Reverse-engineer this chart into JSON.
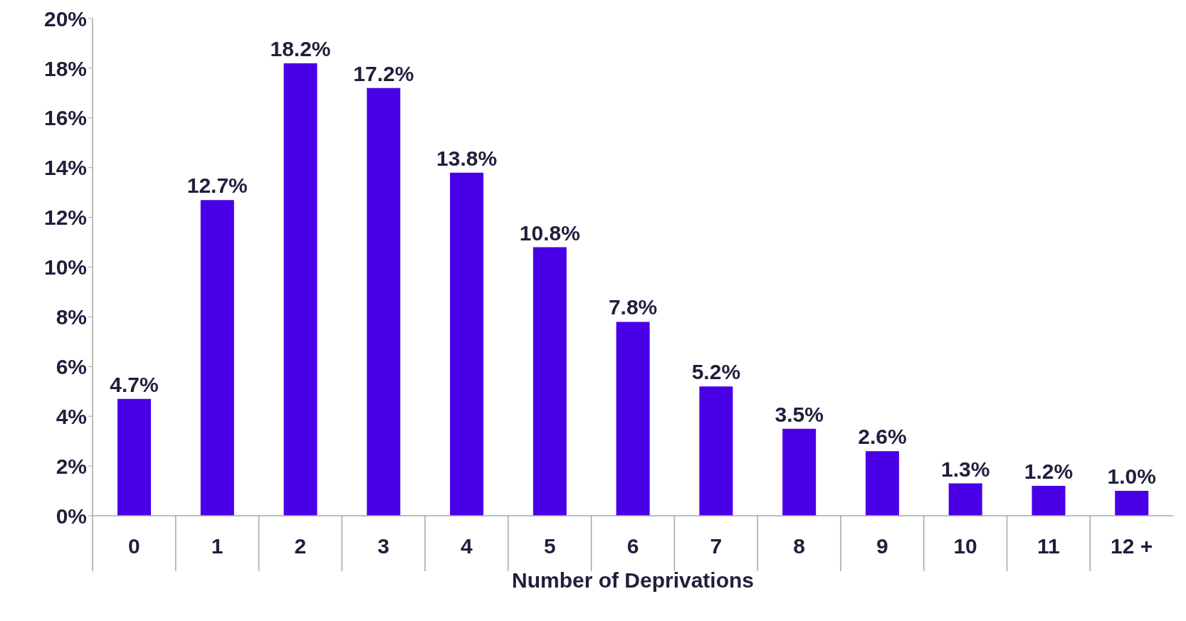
{
  "chart_data": {
    "type": "bar",
    "xlabel": "Number of Deprivations",
    "categories": [
      "0",
      "1",
      "2",
      "3",
      "4",
      "5",
      "6",
      "7",
      "8",
      "9",
      "10",
      "11",
      "12 +"
    ],
    "values": [
      4.7,
      12.7,
      18.2,
      17.2,
      13.8,
      10.8,
      7.8,
      5.2,
      3.5,
      2.6,
      1.3,
      1.2,
      1.0
    ],
    "value_labels": [
      "4.7%",
      "12.7%",
      "18.2%",
      "17.2%",
      "13.8%",
      "10.8%",
      "7.8%",
      "5.2%",
      "3.5%",
      "2.6%",
      "1.3%",
      "1.2%",
      "1.0%"
    ],
    "color": "#4a00e6",
    "ylim": [
      0,
      20
    ],
    "yticks": [
      {
        "value": 0,
        "label": "0%"
      },
      {
        "value": 2,
        "label": "2%"
      },
      {
        "value": 4,
        "label": "4%"
      },
      {
        "value": 6,
        "label": "6%"
      },
      {
        "value": 8,
        "label": "8%"
      },
      {
        "value": 10,
        "label": "10%"
      },
      {
        "value": 12,
        "label": "12%"
      },
      {
        "value": 14,
        "label": "14%"
      },
      {
        "value": 16,
        "label": "16%"
      },
      {
        "value": 18,
        "label": "18%"
      },
      {
        "value": 20,
        "label": "20%"
      }
    ]
  }
}
